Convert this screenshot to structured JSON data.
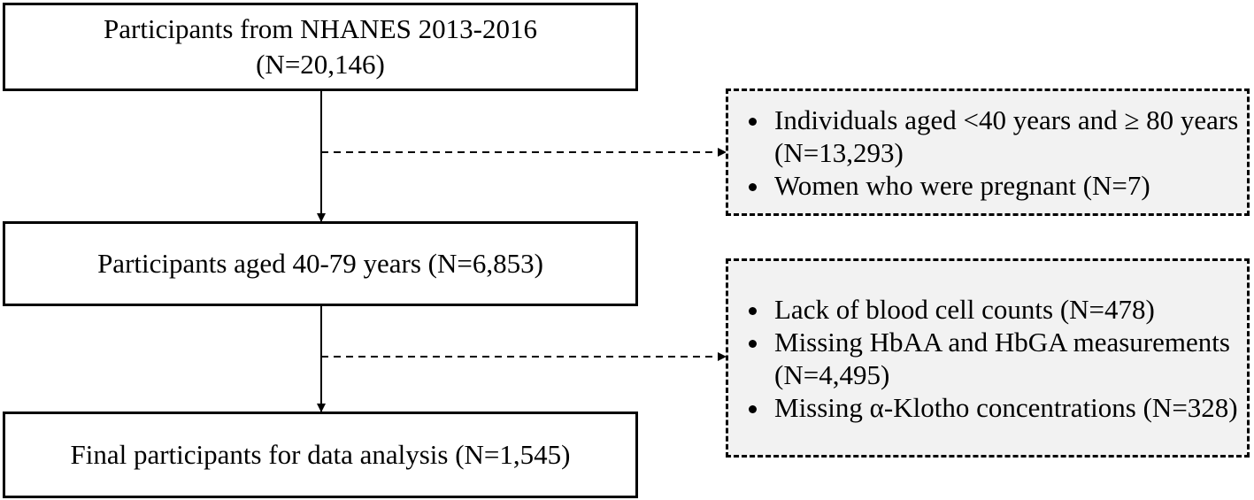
{
  "nodes": [
    {
      "lines": [
        "Participants from NHANES 2013-2016",
        "(N=20,146)"
      ]
    },
    {
      "text": "Participants aged 40-79 years (N=6,853)"
    },
    {
      "text": "Final participants for data analysis (N=1,545)"
    }
  ],
  "exclusions": [
    {
      "items": [
        "Individuals aged <40 years and ≥ 80 years (N=13,293)",
        "Women who were pregnant (N=7)"
      ]
    },
    {
      "items": [
        "Lack of blood cell counts (N=478)",
        "Missing HbAA and HbGA measurements (N=4,495)",
        "Missing α-Klotho concentrations (N=328)"
      ]
    }
  ]
}
